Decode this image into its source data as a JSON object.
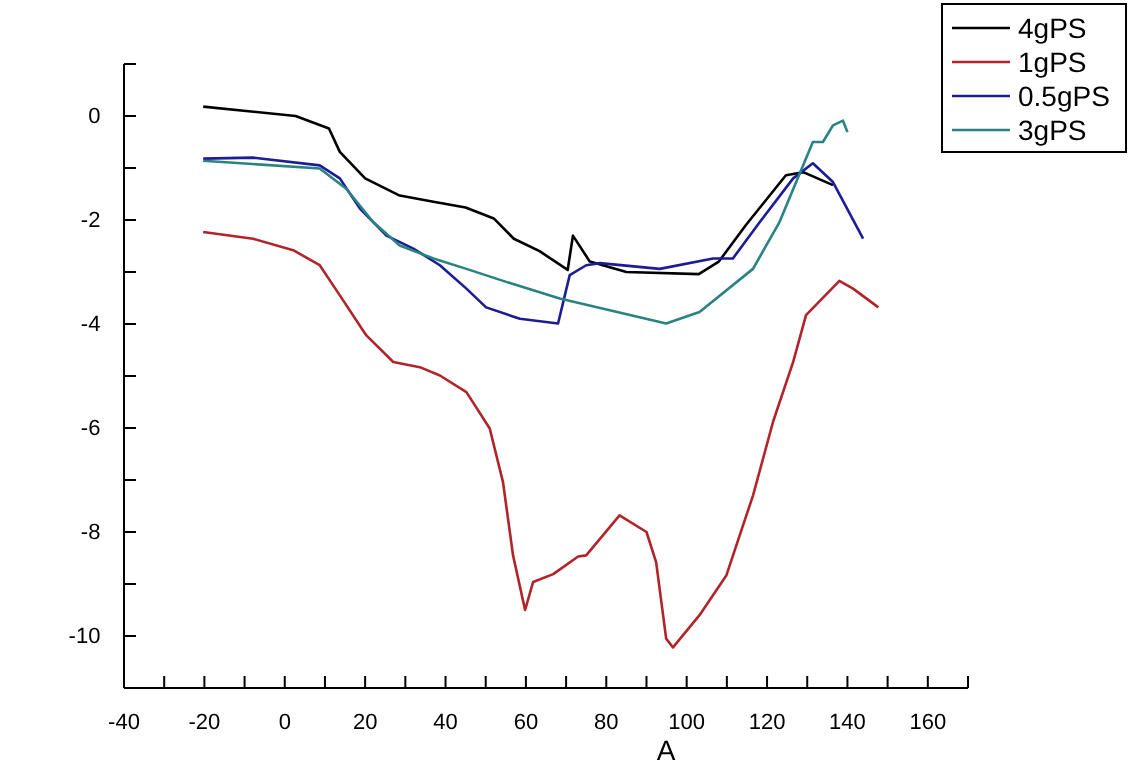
{
  "chart_data": {
    "type": "line",
    "xlabel": "A",
    "xlim": [
      -40,
      170
    ],
    "ylim": [
      -11,
      1
    ],
    "xticks": [
      -40,
      {
        "value": -30,
        "label": null
      },
      -20,
      {
        "value": -10,
        "label": null
      },
      0,
      {
        "value": 10,
        "label": null
      },
      20,
      {
        "value": 30,
        "label": null
      },
      40,
      {
        "value": 50,
        "label": null
      },
      60,
      {
        "value": 70,
        "label": null
      },
      80,
      {
        "value": 90,
        "label": null
      },
      100,
      {
        "value": 110,
        "label": null
      },
      120,
      {
        "value": 130,
        "label": null
      },
      140,
      {
        "value": 150,
        "label": null
      },
      160,
      {
        "value": 170,
        "label": null
      }
    ],
    "yticks": [
      -10,
      {
        "value": -9,
        "label": null
      },
      -8,
      {
        "value": -7,
        "label": null
      },
      -6,
      {
        "value": -5,
        "label": null
      },
      -4,
      {
        "value": -3,
        "label": null
      },
      -2,
      {
        "value": -1,
        "label": null
      },
      0,
      {
        "value": 1,
        "label": null
      }
    ],
    "legend": "top right",
    "grid": false,
    "series": [
      {
        "name": "4gPS",
        "color": "#000000",
        "x": [
          -20.3,
          2.7,
          11,
          13.7,
          20,
          28.6,
          37,
          45,
          52,
          57,
          63.4,
          70.4,
          71.7,
          75.9,
          85,
          103,
          108,
          114.7,
          124.7,
          129,
          136.4
        ],
        "values": [
          0.18,
          0.0,
          -0.24,
          -0.69,
          -1.2,
          -1.53,
          -1.65,
          -1.76,
          -1.97,
          -2.36,
          -2.6,
          -2.96,
          -2.3,
          -2.8,
          -3.0,
          -3.04,
          -2.8,
          -2.1,
          -1.14,
          -1.08,
          -1.33
        ]
      },
      {
        "name": "1gPS",
        "color": "#b0242a",
        "x": [
          -20.3,
          -7.9,
          2.1,
          8.7,
          13.7,
          20.3,
          27,
          33.6,
          38.6,
          45.2,
          51,
          54.3,
          56.8,
          59.8,
          61.8,
          66.8,
          73,
          75,
          83.3,
          90,
          92.4,
          94.9,
          96.6,
          103.2,
          109.9,
          116.5,
          121.5,
          126.5,
          129.7,
          138,
          141.4,
          147.7
        ],
        "values": [
          -2.23,
          -2.36,
          -2.58,
          -2.87,
          -3.45,
          -4.22,
          -4.73,
          -4.83,
          -4.99,
          -5.31,
          -6.01,
          -7.04,
          -8.45,
          -9.5,
          -8.96,
          -8.81,
          -8.47,
          -8.45,
          -7.68,
          -8.0,
          -8.58,
          -10.05,
          -10.22,
          -9.6,
          -8.83,
          -7.3,
          -5.88,
          -4.73,
          -3.83,
          -3.17,
          -3.32,
          -3.68
        ]
      },
      {
        "name": "0.5gPS",
        "color": "#1c1c96",
        "x": [
          -20.3,
          -7.9,
          8.7,
          13.7,
          18.7,
          25.3,
          32,
          38.6,
          45.2,
          50.1,
          58.5,
          68,
          70.9,
          75,
          78.4,
          93.3,
          106.6,
          111.5,
          118.2,
          126.5,
          131.4,
          136.4,
          143.9
        ],
        "values": [
          -0.82,
          -0.8,
          -0.95,
          -1.2,
          -1.78,
          -2.3,
          -2.55,
          -2.87,
          -3.32,
          -3.68,
          -3.9,
          -3.99,
          -3.06,
          -2.87,
          -2.83,
          -2.94,
          -2.74,
          -2.74,
          -2.04,
          -1.2,
          -0.91,
          -1.27,
          -2.36
        ]
      },
      {
        "name": "3gPS",
        "color": "#2a8282",
        "x": [
          -20.3,
          8.7,
          15.3,
          22,
          28.6,
          37,
          45.2,
          55.1,
          68.4,
          94.9,
          103.2,
          116.5,
          123.1,
          131.4,
          133.9,
          136.4,
          138.9,
          140
        ],
        "values": [
          -0.86,
          -1.01,
          -1.4,
          -2.04,
          -2.49,
          -2.74,
          -2.94,
          -3.19,
          -3.51,
          -3.99,
          -3.77,
          -2.94,
          -2.04,
          -0.5,
          -0.5,
          -0.18,
          -0.09,
          -0.31
        ]
      }
    ]
  }
}
